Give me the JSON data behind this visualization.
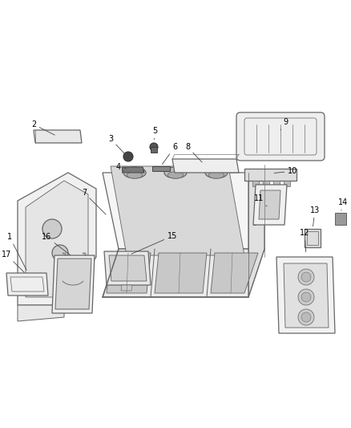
{
  "background_color": "#ffffff",
  "line_color": "#666666",
  "label_color": "#000000",
  "figsize": [
    4.38,
    5.33
  ],
  "dpi": 100,
  "label_fs": 7.0
}
